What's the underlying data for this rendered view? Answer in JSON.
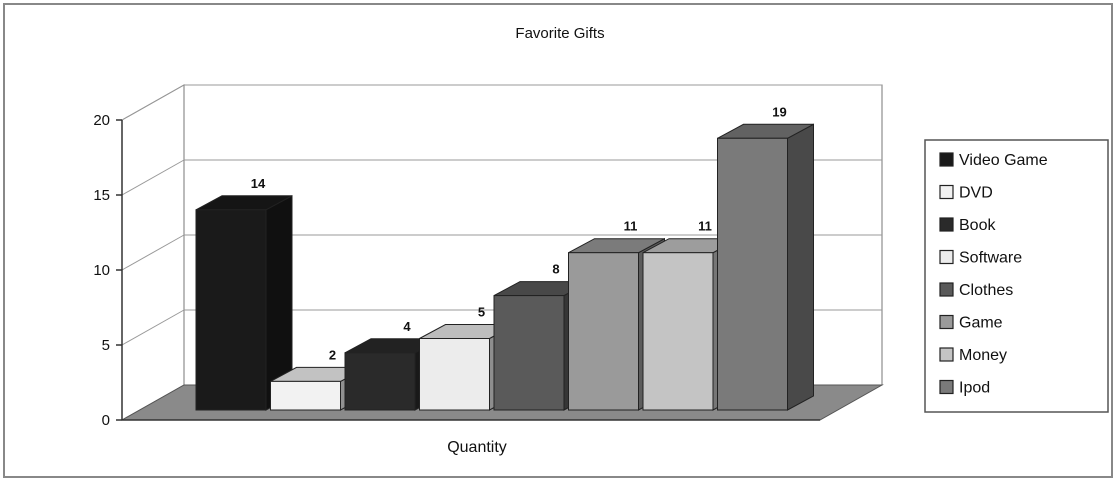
{
  "chart_data": {
    "type": "bar",
    "title": "Favorite Gifts",
    "xlabel": "Quantity",
    "ylabel": "",
    "ylim": [
      0,
      20
    ],
    "yticks": [
      "0",
      "5",
      "10",
      "15",
      "20"
    ],
    "grid": true,
    "legend_position": "right",
    "categories": [
      "Quantity"
    ],
    "series": [
      {
        "name": "Video Game",
        "values": [
          14
        ],
        "data_label": "14",
        "color": "#1a1a1a"
      },
      {
        "name": "DVD",
        "values": [
          2
        ],
        "data_label": "2",
        "color": "#f2f2f2"
      },
      {
        "name": "Book",
        "values": [
          4
        ],
        "data_label": "4",
        "color": "#2a2a2a"
      },
      {
        "name": "Software",
        "values": [
          5
        ],
        "data_label": "5",
        "color": "#ececec"
      },
      {
        "name": "Clothes",
        "values": [
          8
        ],
        "data_label": "8",
        "color": "#5a5a5a"
      },
      {
        "name": "Game",
        "values": [
          11
        ],
        "data_label": "11",
        "color": "#9a9a9a"
      },
      {
        "name": "Money",
        "values": [
          11
        ],
        "data_label": "11",
        "color": "#c4c4c4"
      },
      {
        "name": "Ipod",
        "values": [
          19
        ],
        "data_label": "19",
        "color": "#7a7a7a"
      }
    ]
  }
}
